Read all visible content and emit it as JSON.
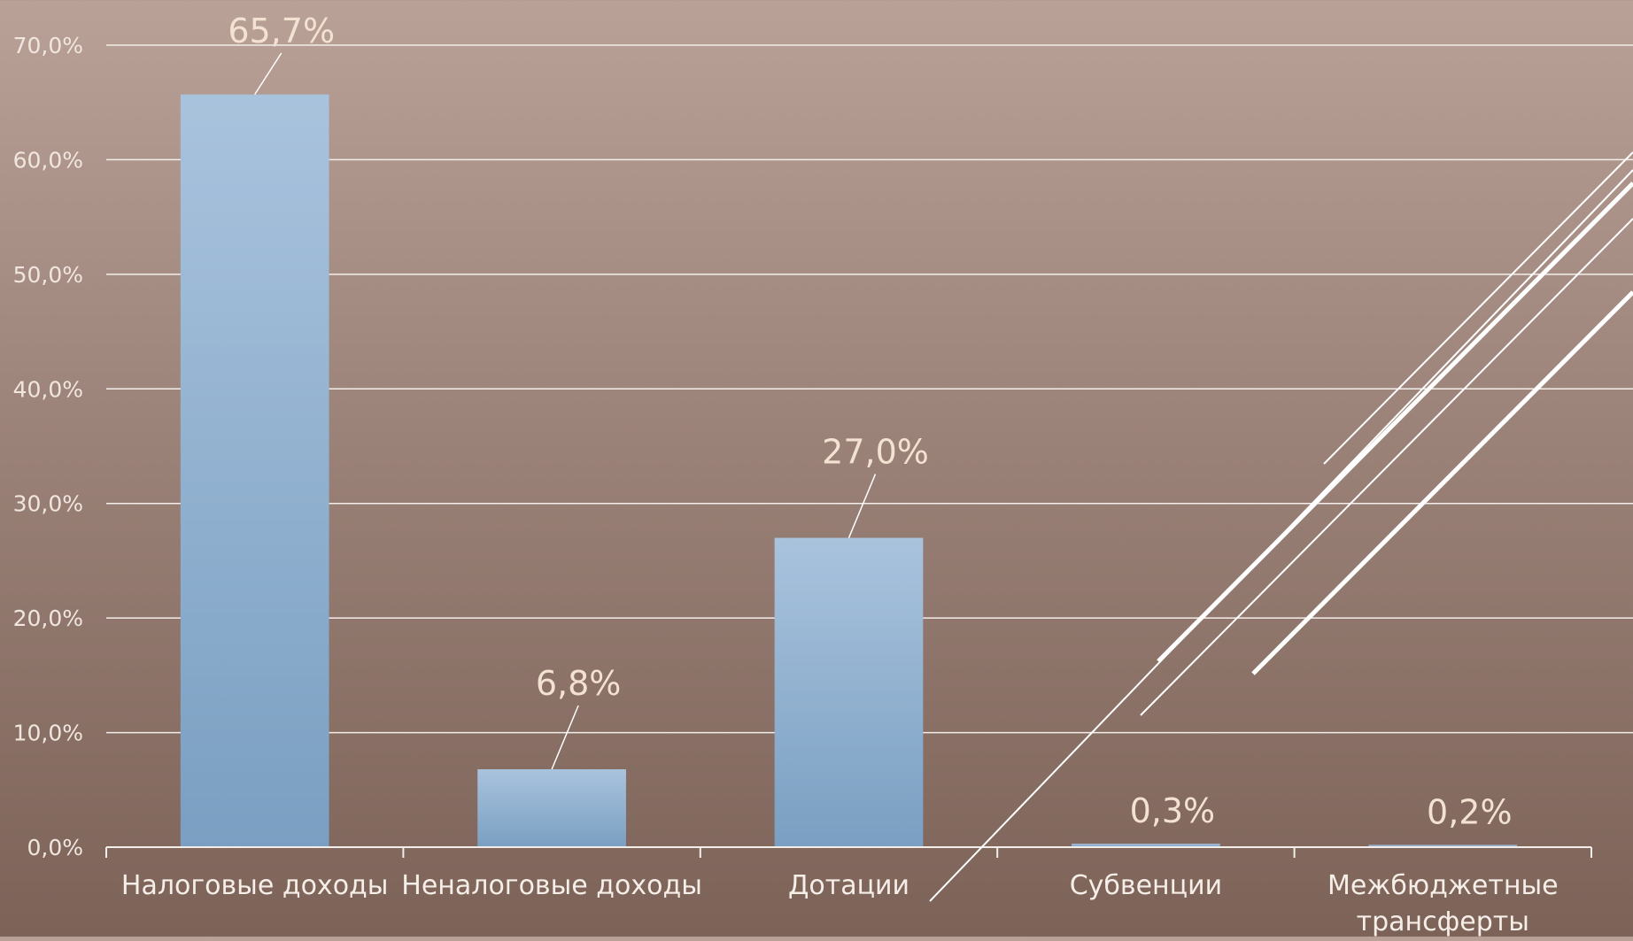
{
  "chart_data": {
    "type": "bar",
    "categories": [
      "Налоговые доходы",
      "Неналоговые доходы",
      "Дотации",
      "Субвенции",
      "Межбюджетные трансферты"
    ],
    "category_lines": [
      [
        "Налоговые доходы"
      ],
      [
        "Неналоговые доходы"
      ],
      [
        "Дотации"
      ],
      [
        "Субвенции"
      ],
      [
        "Межбюджетные",
        "трансферты"
      ]
    ],
    "values": [
      65.7,
      6.8,
      27.0,
      0.3,
      0.2
    ],
    "data_labels": [
      "65,7%",
      "6,8%",
      "27,0%",
      "0,3%",
      "0,2%"
    ],
    "y_ticks": [
      "0,0%",
      "10,0%",
      "20,0%",
      "30,0%",
      "40,0%",
      "50,0%",
      "60,0%",
      "70,0%"
    ],
    "ylim": [
      0,
      70
    ],
    "grid": true,
    "colors": {
      "bar_top": "#a9c3dd",
      "bar_bottom": "#7a9fc2",
      "grid": "#f4eeea",
      "tick_text": "#f1e6df",
      "data_label": "#f3e2d2",
      "category_text": "#f6eee8",
      "decor_lines": "#ffffff"
    }
  }
}
